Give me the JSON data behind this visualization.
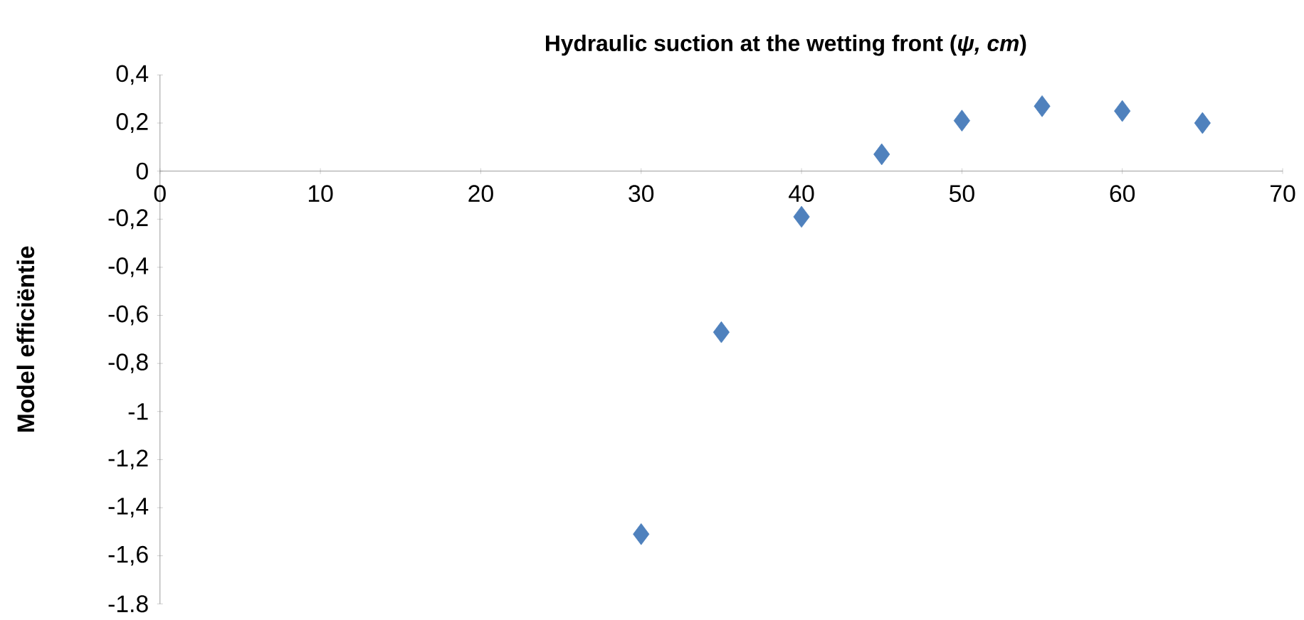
{
  "chart_data": {
    "type": "scatter",
    "title": "Hydraulic suction at the wetting front (*ψ, cm*)",
    "ylabel": "Model efficiëntie",
    "x": [
      30,
      35,
      40,
      45,
      50,
      55,
      60,
      65
    ],
    "series": [
      {
        "color": "#4f81bd",
        "values": [
          -1.51,
          -0.67,
          -0.19,
          0.07,
          0.21,
          0.27,
          0.25,
          0.2
        ]
      }
    ],
    "marker": "diamond",
    "grid": false,
    "xlim": [
      0,
      70
    ],
    "xticks": [
      0,
      10,
      20,
      30,
      40,
      50,
      60,
      70
    ],
    "ylim": [
      -1.8,
      0.4
    ],
    "yticks": [
      {
        "value": 0.4,
        "label": "0,4"
      },
      {
        "value": 0.2,
        "label": "0,2"
      },
      0,
      {
        "value": -0.2,
        "label": "-0,2"
      },
      {
        "value": -0.4,
        "label": "-0,4"
      },
      {
        "value": -0.6,
        "label": "-0,6"
      },
      {
        "value": -0.8,
        "label": "-0,8"
      },
      -1,
      {
        "value": -1.2,
        "label": "-1,2"
      },
      {
        "value": -1.4,
        "label": "-1,4"
      },
      {
        "value": -1.6,
        "label": "-1,6"
      },
      {
        "value": -1.8,
        "label": "-1.8"
      }
    ]
  }
}
